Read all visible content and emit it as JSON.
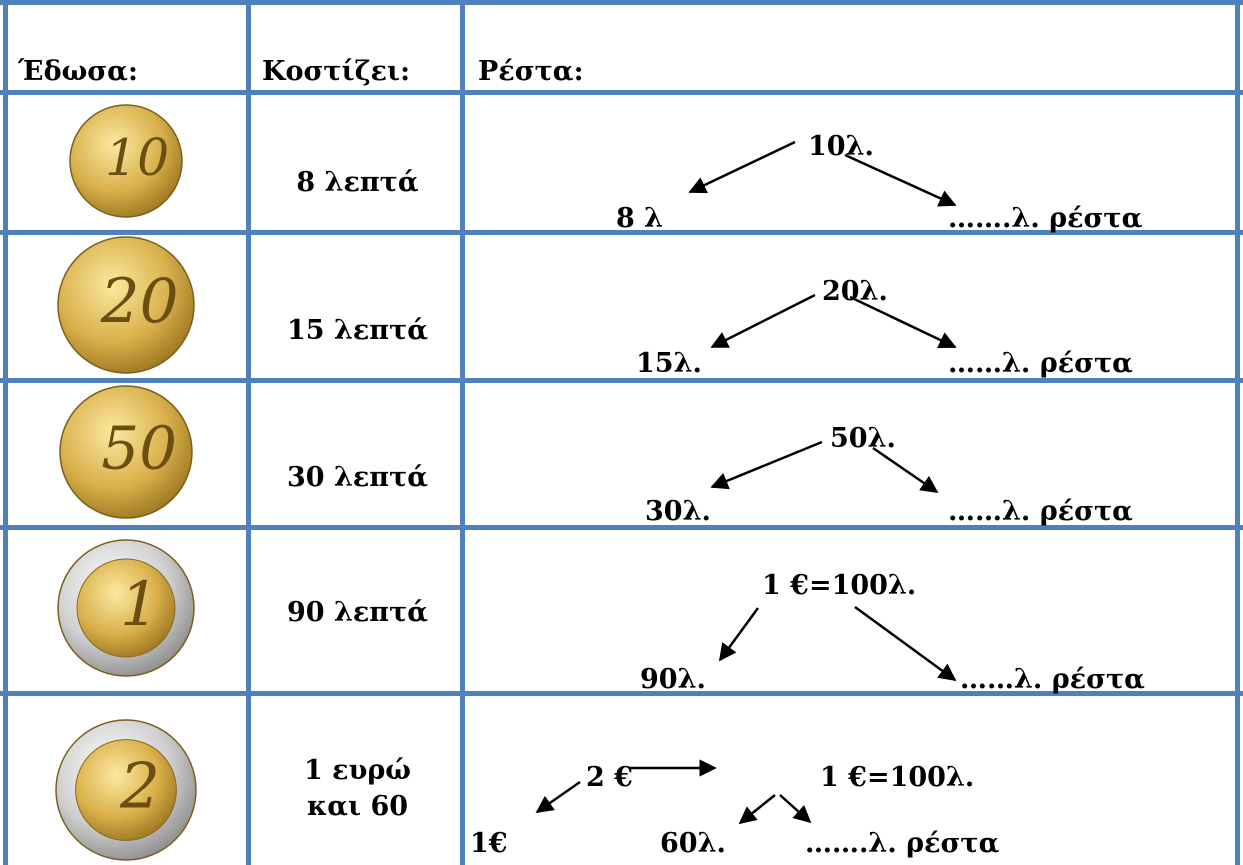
{
  "header": {
    "given": "Έδωσα:",
    "cost": "Κοστίζει:",
    "change": "Ρέστα:"
  },
  "rows": [
    {
      "coin": "10",
      "cost": [
        "8 λεπτά"
      ],
      "top": "10λ.",
      "left": "8 λ",
      "right": "…….λ. ρέστα"
    },
    {
      "coin": "20",
      "cost": [
        "15 λεπτά"
      ],
      "top": "20λ.",
      "left": "15λ.",
      "right": "……λ. ρέστα"
    },
    {
      "coin": "50",
      "cost": [
        "30 λεπτά"
      ],
      "top": "50λ.",
      "left": "30λ.",
      "right": "……λ. ρέστα"
    },
    {
      "coin": "1",
      "cost": [
        "90 λεπτά"
      ],
      "top": "1 €=100λ.",
      "left": "90λ.",
      "right": "……λ. ρέστα"
    },
    {
      "coin": "2",
      "cost": [
        "1 ευρώ",
        "και 60"
      ],
      "top": "2 €",
      "mid": "1 €=100λ.",
      "left": "1€",
      "right_left": "60λ.",
      "right": "…….λ. ρέστα"
    }
  ]
}
